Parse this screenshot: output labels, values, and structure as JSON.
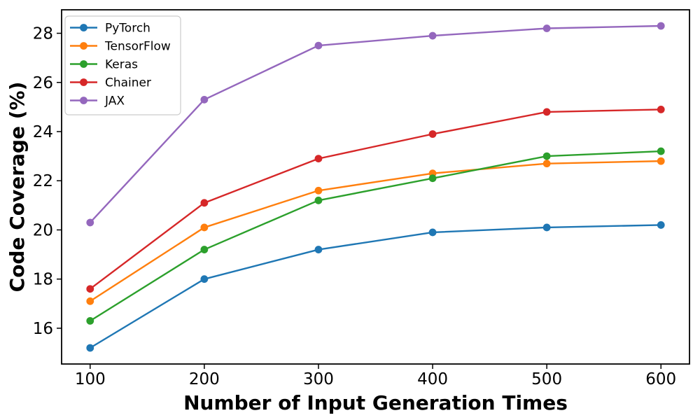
{
  "chart_data": {
    "type": "line",
    "title": "",
    "xlabel": "Number of Input Generation Times",
    "ylabel": "Code Coverage (%)",
    "x": [
      100,
      200,
      300,
      400,
      500,
      600
    ],
    "xticks": [
      "100",
      "200",
      "300",
      "400",
      "500",
      "600"
    ],
    "yticks": [
      "16",
      "18",
      "20",
      "22",
      "24",
      "26",
      "28"
    ],
    "ytick_values": [
      16,
      18,
      20,
      22,
      24,
      26,
      28
    ],
    "xlim": [
      75,
      625
    ],
    "ylim": [
      14.545,
      28.955
    ],
    "grid": false,
    "legend_position": "upper left",
    "marker": "circle",
    "series": [
      {
        "name": "PyTorch",
        "color": "#1f77b4",
        "values": [
          15.2,
          18.0,
          19.2,
          19.9,
          20.1,
          20.2
        ]
      },
      {
        "name": "TensorFlow",
        "color": "#ff7f0e",
        "values": [
          17.1,
          20.1,
          21.6,
          22.3,
          22.7,
          22.8
        ]
      },
      {
        "name": "Keras",
        "color": "#2ca02c",
        "values": [
          16.3,
          19.2,
          21.2,
          22.1,
          23.0,
          23.2
        ]
      },
      {
        "name": "Chainer",
        "color": "#d62728",
        "values": [
          17.6,
          21.1,
          22.9,
          23.9,
          24.8,
          24.9
        ]
      },
      {
        "name": "JAX",
        "color": "#9467bd",
        "values": [
          20.3,
          25.3,
          27.5,
          27.9,
          28.2,
          28.3
        ]
      }
    ],
    "colors": {
      "axis": "#000000",
      "legend_border": "#cccccc",
      "background": "#ffffff"
    }
  }
}
